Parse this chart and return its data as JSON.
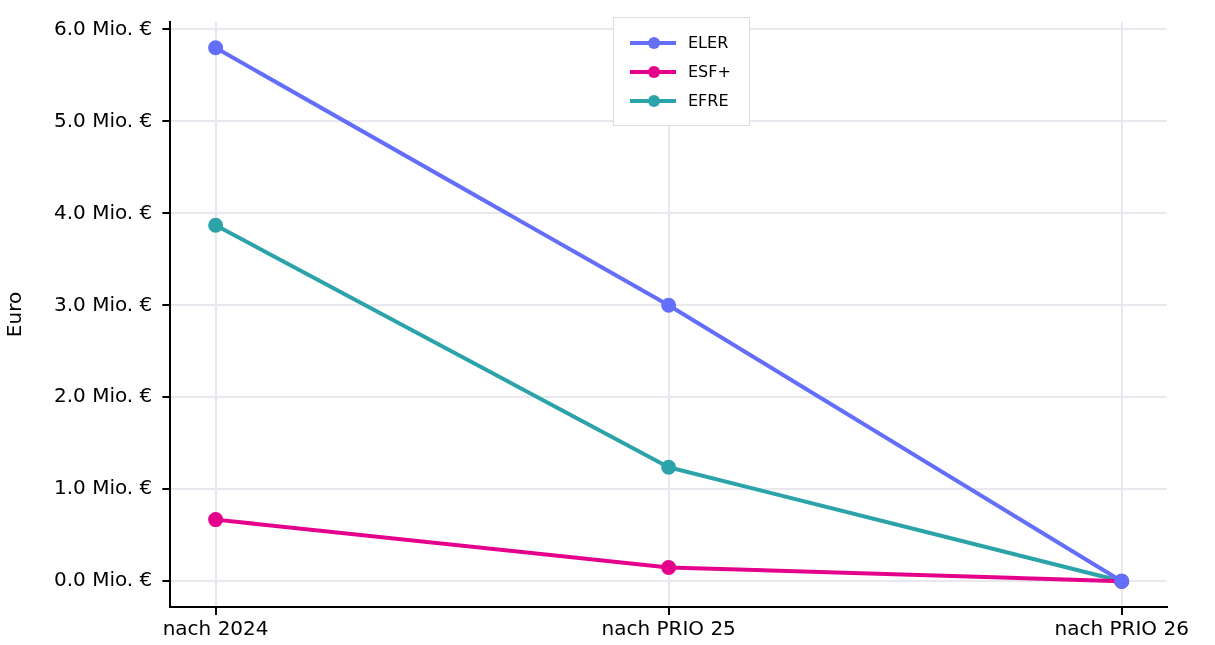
{
  "chart_data": {
    "type": "line",
    "ylabel": "Euro",
    "categories": [
      "nach 2024",
      "nach PRIO 25",
      "nach PRIO 26"
    ],
    "series": [
      {
        "name": "ELER",
        "color": "#636efa",
        "values": [
          5.8,
          3.0,
          0
        ]
      },
      {
        "name": "ESF+",
        "color": "#e5008c",
        "values": [
          0.67,
          0.15,
          0
        ]
      },
      {
        "name": "EFRE",
        "color": "#2ca3a8",
        "values": [
          3.87,
          1.24,
          0
        ]
      }
    ],
    "ylim": [
      -0.28,
      6.08
    ],
    "yticks": [
      {
        "value": 0,
        "label": "0.0 Mio. €"
      },
      {
        "value": 1,
        "label": "1.0 Mio. €"
      },
      {
        "value": 2,
        "label": "2.0 Mio. €"
      },
      {
        "value": 3,
        "label": "3.0 Mio. €"
      },
      {
        "value": 4,
        "label": "4.0 Mio. €"
      },
      {
        "value": 5,
        "label": "5.0 Mio. €"
      },
      {
        "value": 6,
        "label": "6.0 Mio. €"
      }
    ],
    "grid": true,
    "legend": "top",
    "marker": "circle",
    "line_style": "solid"
  }
}
